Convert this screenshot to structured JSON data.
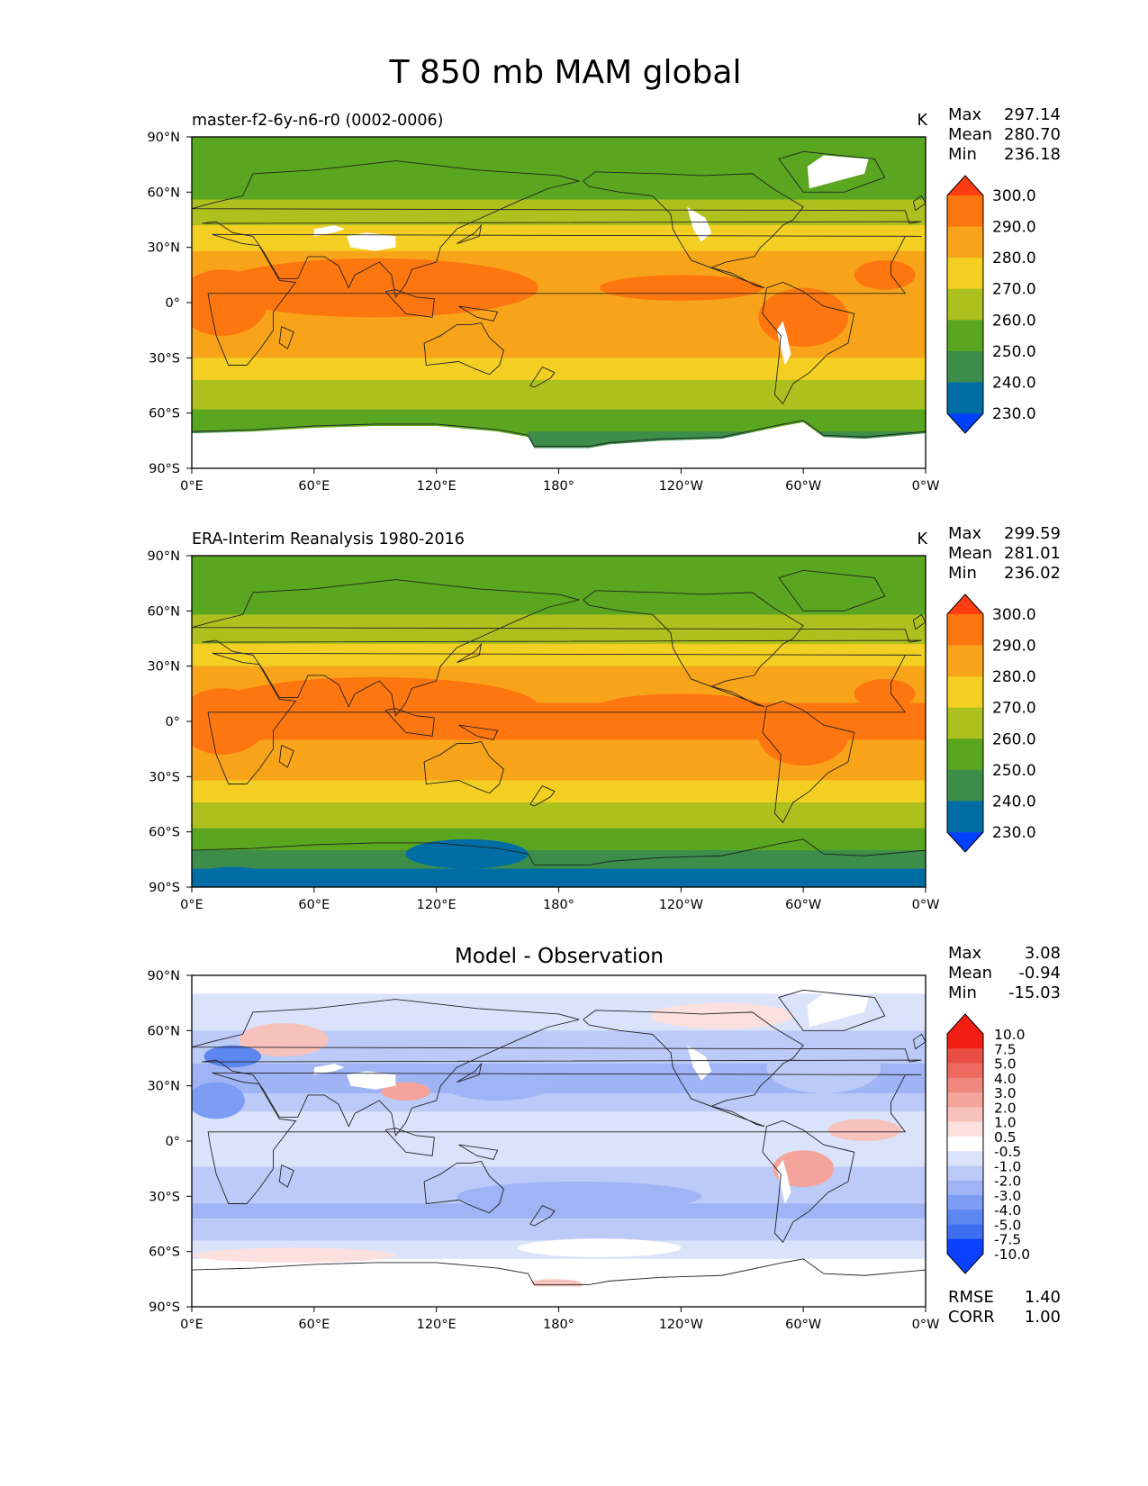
{
  "figure": {
    "title": "T 850 mb MAM global"
  },
  "colors": {
    "mean_levels": [
      "#0041ff",
      "#006ea5",
      "#3d8d4b",
      "#5aa620",
      "#adc11e",
      "#f2cf22",
      "#f8a41a",
      "#fe7610",
      "#ff3d12"
    ],
    "diff_levels": [
      "#0b40ff",
      "#3d6ff0",
      "#5c86f0",
      "#7d9cf3",
      "#9fb3f5",
      "#bccaf8",
      "#dbe3fb",
      "#ffffff",
      "#fce0dd",
      "#f8c2bc",
      "#f4a49b",
      "#f0877e",
      "#ec6a60",
      "#e84e43",
      "#f11e13"
    ]
  },
  "axes_labels": {
    "lat_ticks": [
      "90°N",
      "60°N",
      "30°N",
      "0°",
      "30°S",
      "60°S",
      "90°S"
    ],
    "lon_ticks": [
      "0°E",
      "60°E",
      "120°E",
      "180°",
      "120°W",
      "60°W",
      "0°W"
    ]
  },
  "chart_data": [
    {
      "type": "heatmap",
      "title": "master-f2-6y-n6-r0 (0002-0006)",
      "units": "K",
      "stats": {
        "max_label": "Max",
        "max": "297.14",
        "mean_label": "Mean",
        "mean": "280.70",
        "min_label": "Min",
        "min": "236.18"
      },
      "colorbar_ticks": [
        "300.0",
        "290.0",
        "280.0",
        "270.0",
        "260.0",
        "250.0",
        "240.0",
        "230.0"
      ],
      "xlim": [
        0,
        360
      ],
      "ylim": [
        -90,
        90
      ],
      "masked_high_terrain": true,
      "lat_profile": {
        "lat": [
          -90,
          -80,
          -70,
          -60,
          -50,
          -40,
          -30,
          -20,
          -10,
          0,
          10,
          20,
          30,
          40,
          50,
          60,
          70,
          80,
          90
        ],
        "values": [
          238,
          240,
          250,
          258,
          265,
          272,
          280,
          285,
          289,
          290,
          289,
          285,
          279,
          271,
          264,
          258,
          253,
          251,
          250
        ]
      }
    },
    {
      "type": "heatmap",
      "title": "ERA-Interim Reanalysis 1980-2016",
      "units": "K",
      "stats": {
        "max_label": "Max",
        "max": "299.59",
        "mean_label": "Mean",
        "mean": "281.01",
        "min_label": "Min",
        "min": "236.02"
      },
      "colorbar_ticks": [
        "300.0",
        "290.0",
        "280.0",
        "270.0",
        "260.0",
        "250.0",
        "240.0",
        "230.0"
      ],
      "xlim": [
        0,
        360
      ],
      "ylim": [
        -90,
        90
      ],
      "masked_high_terrain": false,
      "lat_profile": {
        "lat": [
          -90,
          -80,
          -70,
          -60,
          -50,
          -40,
          -30,
          -20,
          -10,
          0,
          10,
          20,
          30,
          40,
          50,
          60,
          70,
          80,
          90
        ],
        "values": [
          236,
          240,
          251,
          259,
          266,
          273,
          281,
          286,
          290,
          291,
          290,
          286,
          280,
          272,
          265,
          259,
          254,
          252,
          251
        ]
      }
    },
    {
      "type": "heatmap",
      "title": "Model - Observation",
      "units": "",
      "stats": {
        "max_label": "Max",
        "max": "3.08",
        "mean_label": "Mean",
        "mean": "-0.94",
        "min_label": "Min",
        "min": "-15.03"
      },
      "colorbar_ticks": [
        "10.0",
        "7.5",
        "5.0",
        "4.0",
        "3.0",
        "2.0",
        "1.0",
        "0.5",
        "-0.5",
        "-1.0",
        "-2.0",
        "-3.0",
        "-4.0",
        "-5.0",
        "-7.5",
        "-10.0"
      ],
      "xlim": [
        0,
        360
      ],
      "ylim": [
        -90,
        90
      ],
      "masked_high_terrain": true,
      "lat_profile": {
        "lat": [
          -90,
          -80,
          -70,
          -60,
          -50,
          -40,
          -30,
          -20,
          -10,
          0,
          10,
          20,
          30,
          40,
          50,
          60,
          70,
          80,
          90
        ],
        "values": [
          0.5,
          0.2,
          -0.3,
          -0.6,
          -1.2,
          -2.2,
          -1.8,
          -1.3,
          -0.8,
          -0.6,
          -0.7,
          -1.2,
          -2.5,
          -2.2,
          -1.5,
          -1.0,
          -0.8,
          -0.5,
          -0.3
        ]
      },
      "skill": {
        "rmse_label": "RMSE",
        "rmse": "1.40",
        "corr_label": "CORR",
        "corr": "1.00"
      }
    }
  ]
}
